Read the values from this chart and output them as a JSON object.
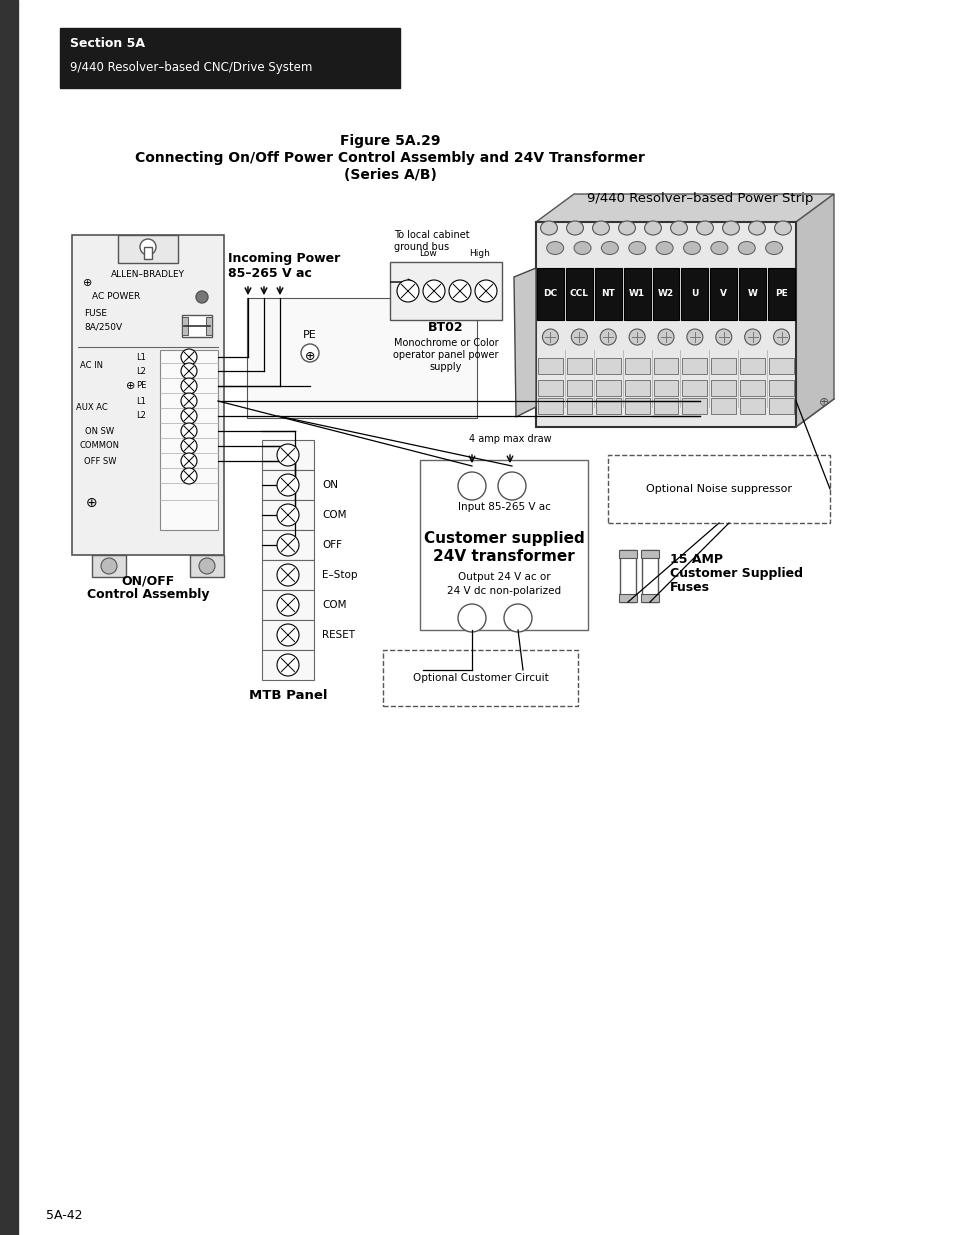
{
  "page_background": "#ffffff",
  "header_bg": "#1a1a1a",
  "header_text_line1": "Section 5A",
  "header_text_line2": "9/440 Resolver–based CNC/Drive System",
  "header_text_color": "#ffffff",
  "figure_title_line1": "Figure 5A.29",
  "figure_title_line2": "Connecting On/Off Power Control Assembly and 24V Transformer",
  "figure_title_line3": "(Series A/B)",
  "power_strip_label": "9/440 Resolver–based Power Strip",
  "footer_page": "5A-42",
  "left_bar_color": "#333333"
}
